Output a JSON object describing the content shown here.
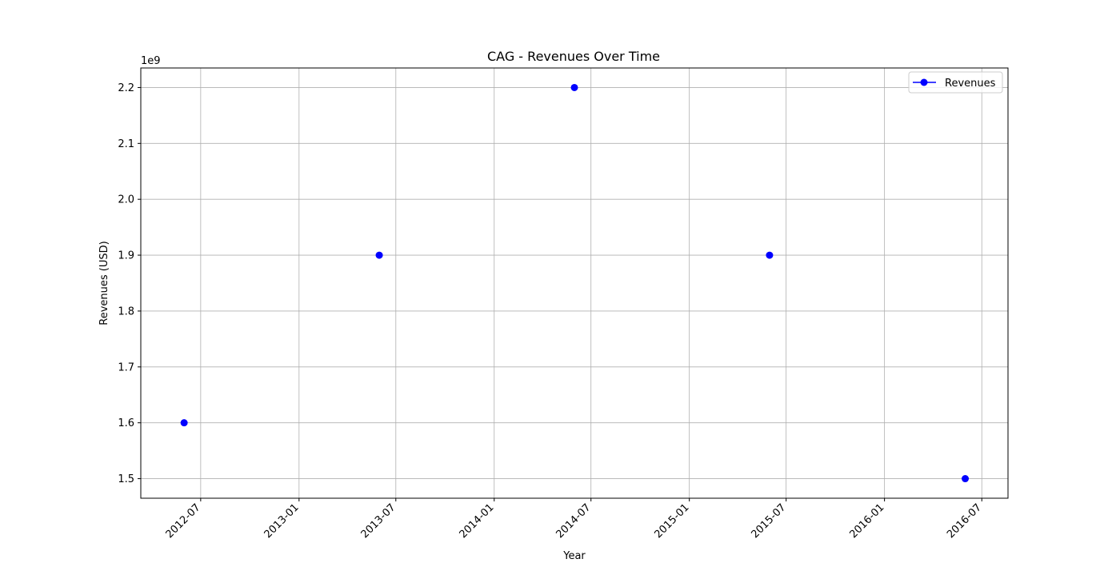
{
  "chart_data": {
    "type": "line",
    "title": "CAG - Revenues Over Time",
    "xlabel": "Year",
    "ylabel": "Revenues (USD)",
    "y_offset_label": "1e9",
    "x": [
      "2012-05-31",
      "2013-05-31",
      "2014-05-31",
      "2015-05-31",
      "2016-05-31"
    ],
    "series": [
      {
        "name": "Revenues",
        "color": "#0000ff",
        "marker": "circle",
        "line": false,
        "values": [
          1600000000,
          1900000000,
          2200000000,
          1900000000,
          1500000000
        ]
      }
    ],
    "x_ticks": [
      "2012-07",
      "2013-01",
      "2013-07",
      "2014-01",
      "2014-07",
      "2015-01",
      "2015-07",
      "2016-01",
      "2016-07"
    ],
    "x_range": [
      "2012-03-11",
      "2016-08-19"
    ],
    "y_ticks": [
      "1.5",
      "1.6",
      "1.7",
      "1.8",
      "1.9",
      "2.0",
      "2.1",
      "2.2"
    ],
    "ylim": [
      1465000000,
      2235000000
    ],
    "grid": true,
    "legend_position": "top-right"
  },
  "colors": {
    "grid": "#b0b0b0",
    "axes": "#000000",
    "series": "#0000ff"
  }
}
